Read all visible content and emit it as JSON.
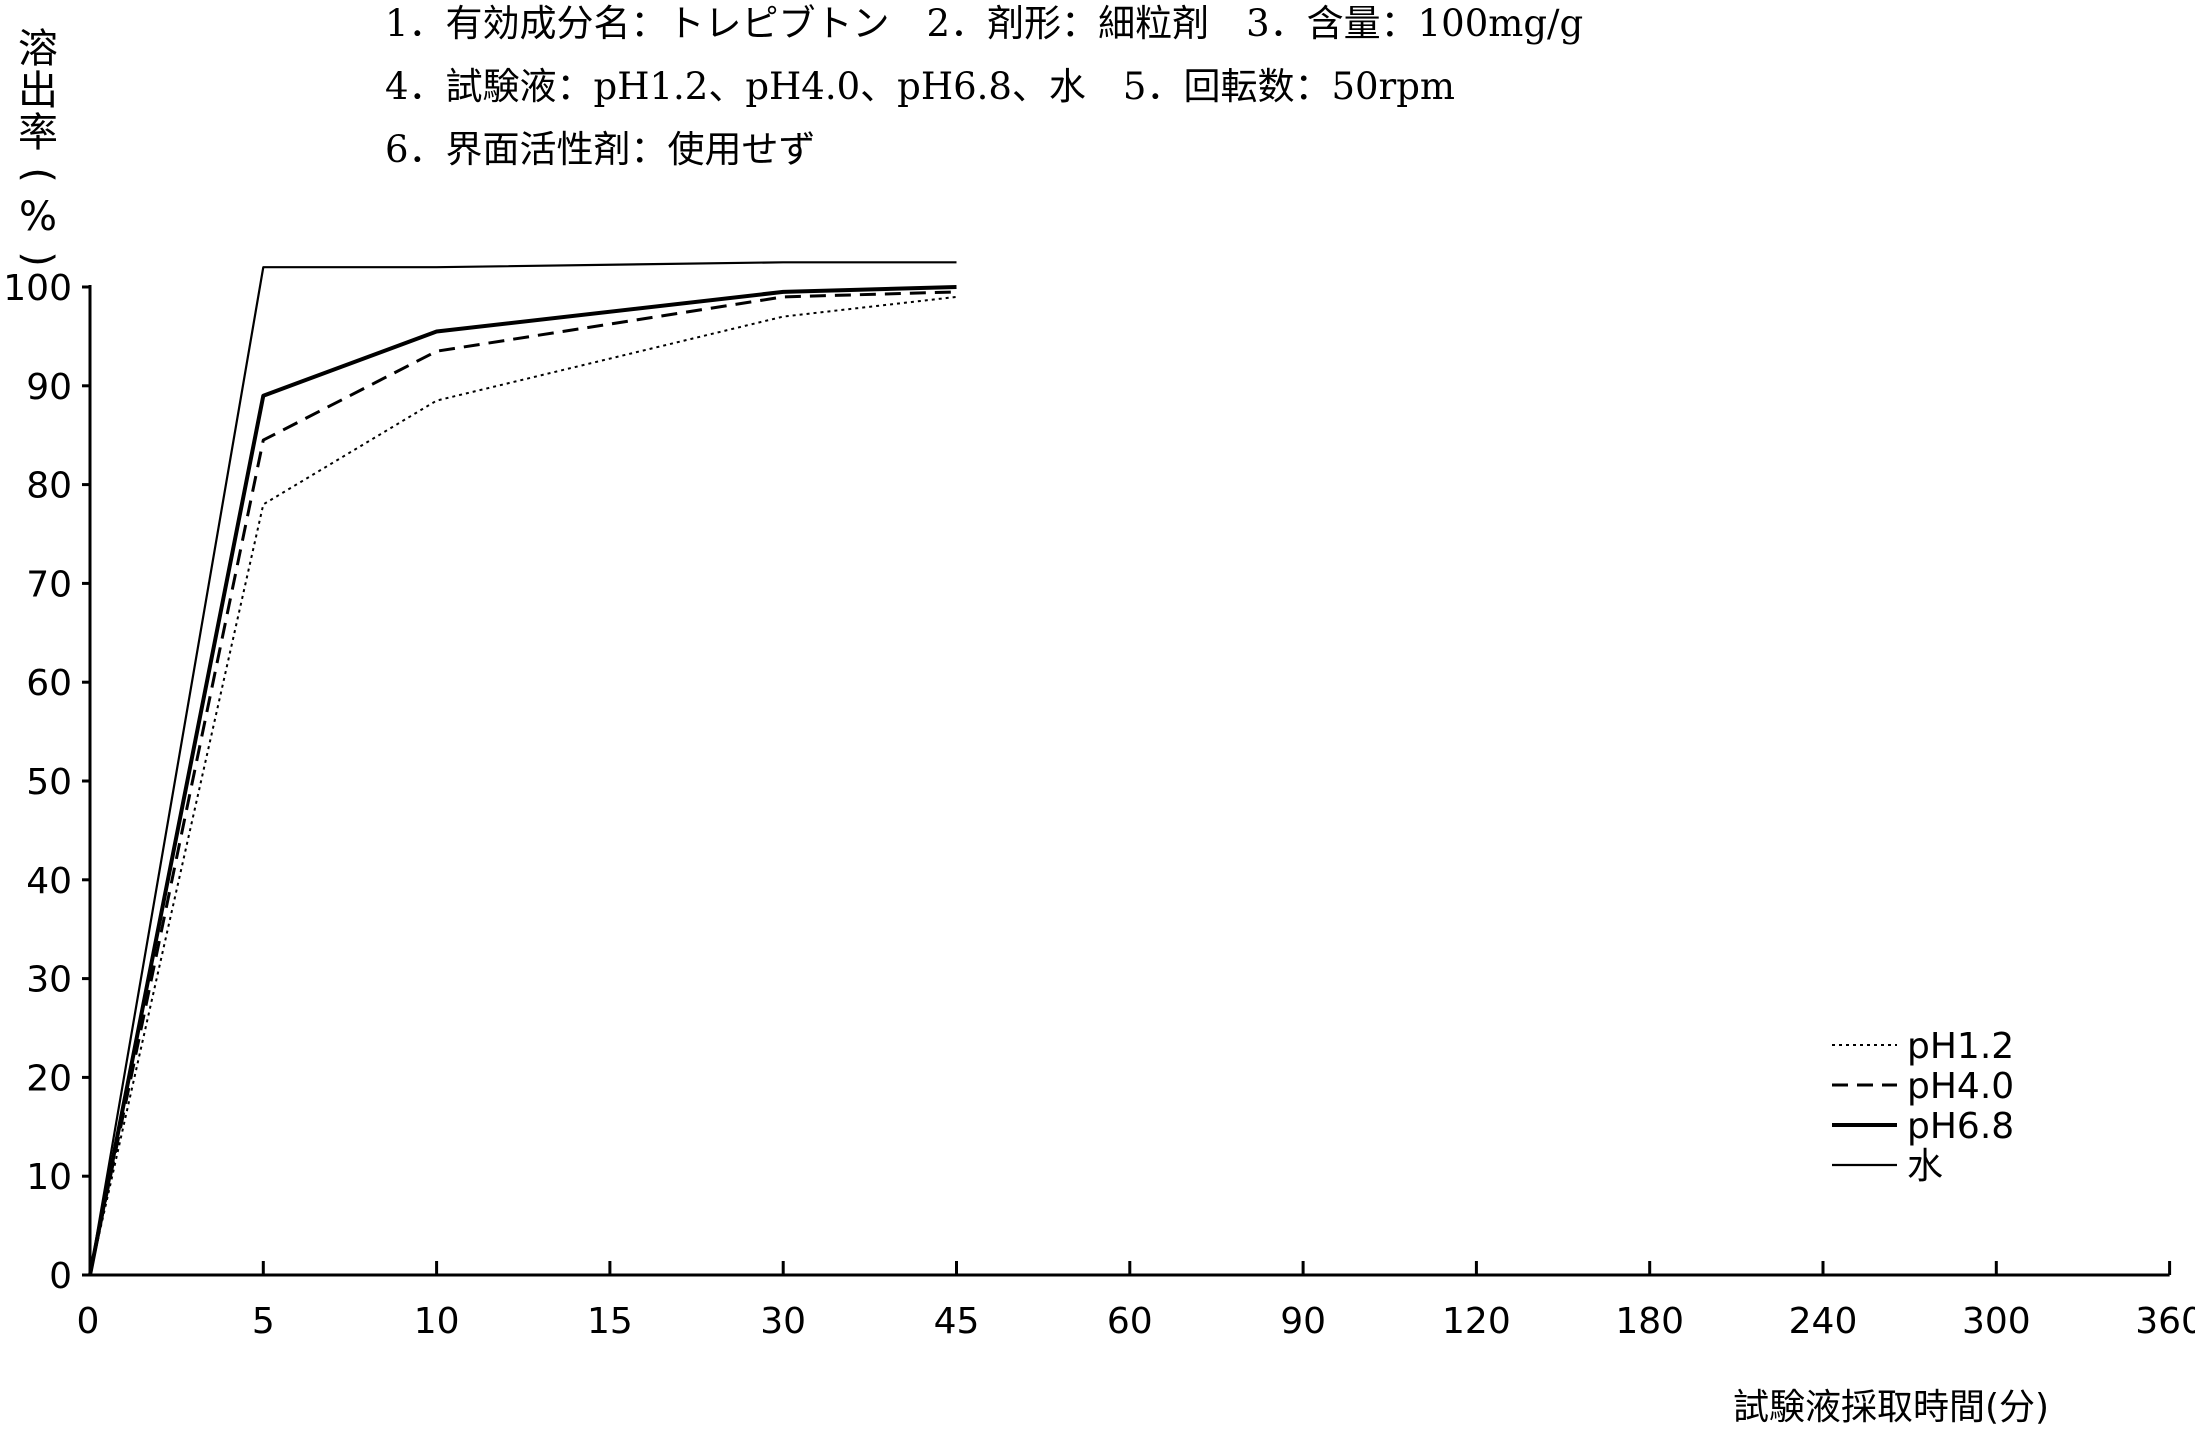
{
  "header": {
    "line1": "1．有効成分名：トレピブトン　2．剤形：細粒剤　3．含量：100mg/g",
    "line2": "4．試験液：pH1.2、pH4.0、pH6.8、水　5．回転数：50rpm",
    "line3": "6．界面活性剤：使用せず"
  },
  "chart_data": {
    "type": "line",
    "ylabel": "溶出率(%)",
    "xlabel": "試験液採取時間(分)",
    "categories": [
      "0",
      "5",
      "10",
      "15",
      "30",
      "45",
      "60",
      "90",
      "120",
      "180",
      "240",
      "300",
      "360"
    ],
    "yticks": [
      "0",
      "10",
      "20",
      "30",
      "40",
      "50",
      "60",
      "70",
      "80",
      "90",
      "100"
    ],
    "ylim": [
      0,
      100
    ],
    "grid": false,
    "legend_position": "bottom-right",
    "series": [
      {
        "name": "pH1.2",
        "style": "dotted",
        "points": [
          [
            0,
            0
          ],
          [
            5,
            78
          ],
          [
            10,
            88.5
          ],
          [
            30,
            97
          ],
          [
            45,
            99
          ]
        ]
      },
      {
        "name": "pH4.0",
        "style": "dashed",
        "points": [
          [
            0,
            0
          ],
          [
            5,
            84.5
          ],
          [
            10,
            93.5
          ],
          [
            30,
            99
          ],
          [
            45,
            99.5
          ]
        ]
      },
      {
        "name": "pH6.8",
        "style": "solid-thick",
        "points": [
          [
            0,
            0
          ],
          [
            5,
            89
          ],
          [
            10,
            95.5
          ],
          [
            30,
            99.5
          ],
          [
            45,
            100
          ]
        ]
      },
      {
        "name": "水",
        "style": "solid-thin",
        "points": [
          [
            0,
            0
          ],
          [
            5,
            102
          ],
          [
            10,
            102
          ],
          [
            30,
            102.5
          ],
          [
            45,
            102.5
          ]
        ]
      }
    ],
    "line_color": "#000000"
  }
}
